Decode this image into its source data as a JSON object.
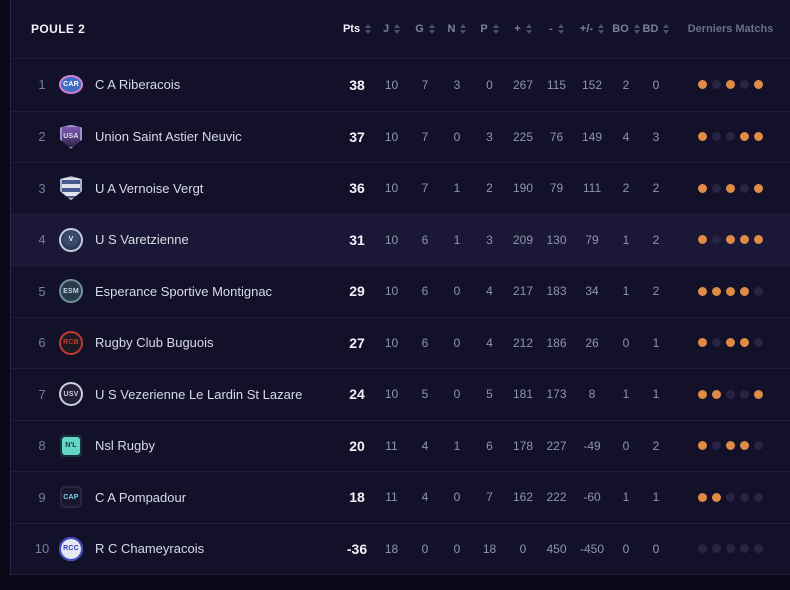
{
  "header": {
    "group_label": "POULE 2",
    "columns": [
      {
        "key": "pts",
        "label": "Pts",
        "sortable": true,
        "emphasis": true
      },
      {
        "key": "j",
        "label": "J",
        "sortable": true
      },
      {
        "key": "g",
        "label": "G",
        "sortable": true
      },
      {
        "key": "n",
        "label": "N",
        "sortable": true
      },
      {
        "key": "p",
        "label": "P",
        "sortable": true
      },
      {
        "key": "plus",
        "label": "+",
        "sortable": true
      },
      {
        "key": "minus",
        "label": "-",
        "sortable": true
      },
      {
        "key": "diff",
        "label": "+/-",
        "sortable": true
      },
      {
        "key": "bo",
        "label": "BO",
        "sortable": true
      },
      {
        "key": "bd",
        "label": "BD",
        "sortable": true
      },
      {
        "key": "last",
        "label": "Derniers Matchs",
        "sortable": false
      }
    ]
  },
  "colors": {
    "page_bg": "#0a0918",
    "panel_bg": "#13112a",
    "row_highlight": "#1a1836",
    "win_dot": "#df8a45",
    "dim_dot": "#262345"
  },
  "teams": [
    {
      "rank": 1,
      "name": "C A Riberacois",
      "pts": 38,
      "j": 10,
      "g": 7,
      "n": 3,
      "p": 0,
      "plus": 267,
      "minus": 115,
      "diff": 152,
      "bo": 2,
      "bd": 0,
      "highlighted": false,
      "last": [
        "win",
        "other",
        "win",
        "other",
        "win"
      ],
      "logo": {
        "shape": "ellipse",
        "bg": "#3f6cc0",
        "ring": "#cf7fd0",
        "text": "CAR",
        "text_color": "#ffffff"
      }
    },
    {
      "rank": 2,
      "name": "Union Saint Astier Neuvic",
      "pts": 37,
      "j": 10,
      "g": 7,
      "n": 0,
      "p": 3,
      "plus": 225,
      "minus": 76,
      "diff": 149,
      "bo": 4,
      "bd": 3,
      "highlighted": false,
      "last": [
        "win",
        "other",
        "other",
        "win",
        "win"
      ],
      "logo": {
        "shape": "shield",
        "bg": "linear-gradient(180deg,#8a5fc0 0%,#241f3e 100%)",
        "ring": "#9b90c8",
        "text": "USA",
        "text_color": "#e8e2f4"
      }
    },
    {
      "rank": 3,
      "name": "U A Vernoise Vergt",
      "pts": 36,
      "j": 10,
      "g": 7,
      "n": 1,
      "p": 2,
      "plus": 190,
      "minus": 79,
      "diff": 111,
      "bo": 2,
      "bd": 2,
      "highlighted": false,
      "last": [
        "win",
        "other",
        "win",
        "other",
        "win"
      ],
      "logo": {
        "shape": "shield",
        "bg": "repeating-linear-gradient(180deg,#dfe3ee 0 4px,#47598f 4px 8px)",
        "ring": "#aab3cc",
        "text": "",
        "text_color": "#2c3a66"
      }
    },
    {
      "rank": 4,
      "name": "U S Varetzienne",
      "pts": 31,
      "j": 10,
      "g": 6,
      "n": 1,
      "p": 3,
      "plus": 209,
      "minus": 130,
      "diff": 79,
      "bo": 1,
      "bd": 2,
      "highlighted": true,
      "last": [
        "win",
        "other",
        "win",
        "win",
        "win"
      ],
      "logo": {
        "shape": "circle",
        "bg": "radial-gradient(circle at 50% 45%, #3c4a6e 0 35%, #1d2742 75%)",
        "ring": "#c6cde0",
        "text": "V",
        "text_color": "#e9edf6"
      }
    },
    {
      "rank": 5,
      "name": "Esperance Sportive Montignac",
      "pts": 29,
      "j": 10,
      "g": 6,
      "n": 0,
      "p": 4,
      "plus": 217,
      "minus": 183,
      "diff": 34,
      "bo": 1,
      "bd": 2,
      "highlighted": false,
      "last": [
        "win",
        "win",
        "win",
        "win",
        "other"
      ],
      "logo": {
        "shape": "circle",
        "bg": "#2a3c4a",
        "ring": "#6f8fa0",
        "text": "ESM",
        "text_color": "#bcd6e0"
      }
    },
    {
      "rank": 6,
      "name": "Rugby Club Buguois",
      "pts": 27,
      "j": 10,
      "g": 6,
      "n": 0,
      "p": 4,
      "plus": 212,
      "minus": 186,
      "diff": 26,
      "bo": 0,
      "bd": 1,
      "highlighted": false,
      "last": [
        "win",
        "other",
        "win",
        "win",
        "other"
      ],
      "logo": {
        "shape": "circle",
        "bg": "#1d1a22",
        "ring": "#c03a32",
        "text": "RCB",
        "text_color": "#c03a32"
      }
    },
    {
      "rank": 7,
      "name": "U S Vezerienne Le Lardin St Lazare",
      "pts": 24,
      "j": 10,
      "g": 5,
      "n": 0,
      "p": 5,
      "plus": 181,
      "minus": 173,
      "diff": 8,
      "bo": 1,
      "bd": 1,
      "highlighted": false,
      "last": [
        "win",
        "win",
        "other",
        "other",
        "win"
      ],
      "logo": {
        "shape": "circle",
        "bg": "#232036",
        "ring": "#c9cedd",
        "text": "USV",
        "text_color": "#c9cedd"
      }
    },
    {
      "rank": 8,
      "name": "Nsl Rugby",
      "pts": 20,
      "j": 11,
      "g": 4,
      "n": 1,
      "p": 6,
      "plus": 178,
      "minus": 227,
      "diff": -49,
      "bo": 0,
      "bd": 2,
      "highlighted": false,
      "last": [
        "win",
        "other",
        "win",
        "win",
        "other"
      ],
      "logo": {
        "shape": "square",
        "bg": "#67d4c8",
        "ring": "#14303a",
        "text": "N'L",
        "text_color": "#14303a"
      }
    },
    {
      "rank": 9,
      "name": "C A Pompadour",
      "pts": 18,
      "j": 11,
      "g": 4,
      "n": 0,
      "p": 7,
      "plus": 162,
      "minus": 222,
      "diff": -60,
      "bo": 1,
      "bd": 1,
      "highlighted": false,
      "last": [
        "win",
        "win",
        "other",
        "other",
        "other"
      ],
      "logo": {
        "shape": "square",
        "bg": "#191630",
        "ring": "#2a2745",
        "text": "CAP",
        "text_color": "#7fd4e8"
      }
    },
    {
      "rank": 10,
      "name": "R C Chameyracois",
      "pts": -36,
      "j": 18,
      "g": 0,
      "n": 0,
      "p": 18,
      "plus": 0,
      "minus": 450,
      "diff": -450,
      "bo": 0,
      "bd": 0,
      "highlighted": false,
      "last": [
        "other",
        "other",
        "other",
        "other",
        "other"
      ],
      "logo": {
        "shape": "circle",
        "bg": "#e6e9f2",
        "ring": "#3b49c0",
        "text": "RCC",
        "text_color": "#2f3db8"
      }
    }
  ]
}
